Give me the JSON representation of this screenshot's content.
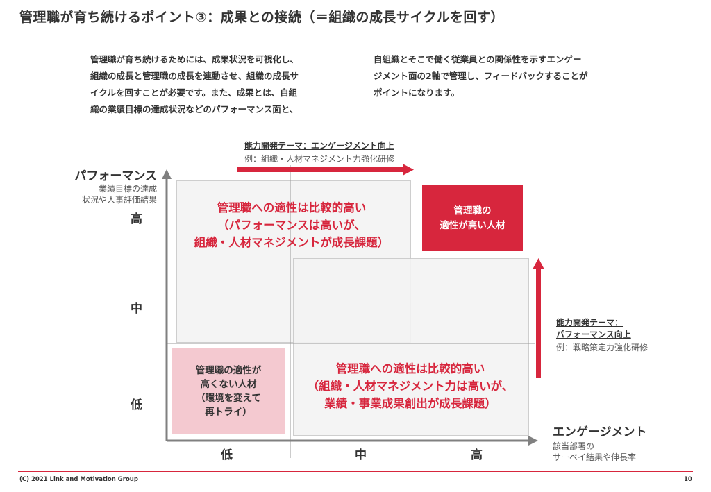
{
  "title": "管理職が育ち続けるポイント③：成果との接続（＝組織の成長サイクルを回す）",
  "intro": {
    "left_lines": [
      "管理職が育ち続けるためには、成果状況を可視化し、",
      "組織の成長と管理職の成長を連動させ、組織の成長サ",
      "イクルを回すことが必要です。また、成果とは、自組",
      "織の業績目標の達成状況などのパフォーマンス面と、"
    ],
    "right_lines": [
      "自組織とそこで働く従業員との関係性を示すエンゲー",
      "ジメント面の2軸で管理し、フィードバックすることが",
      "ポイントになります。"
    ]
  },
  "top_theme": {
    "title": "能力開発テーマ：エンゲージメント向上",
    "example": "例：組織・人材マネジメント力強化研修"
  },
  "right_theme": {
    "title_lines": [
      "能力開発テーマ：",
      "パフォーマンス向上"
    ],
    "example": "例：戦略策定力強化研修"
  },
  "y_axis": {
    "title": "パフォーマンス",
    "sub_lines": [
      "業績目標の達成",
      "状況や人事評価結果"
    ],
    "ticks": [
      "高",
      "中",
      "低"
    ]
  },
  "x_axis": {
    "title": "エンゲージメント",
    "sub_lines": [
      "該当部署の",
      "サーベイ結果や伸長率"
    ],
    "ticks": [
      "低",
      "中",
      "高"
    ]
  },
  "quadrants": {
    "top_left_lines": [
      "管理職への適性は比較的高い",
      "（パフォーマンスは高いが、",
      "組織・人材マネジメントが成長課題）"
    ],
    "top_right_lines": [
      "管理職の",
      "適性が高い人材"
    ],
    "bottom_left_lines": [
      "管理職の適性が",
      "高くない人材",
      "（環境を変えて",
      "再トライ）"
    ],
    "bottom_right_lines": [
      "管理職への適性は比較的高い",
      "（組織・人材マネジメント力は高いが、",
      "業績・事業成果創出が成長課題）"
    ]
  },
  "colors": {
    "accent": "#d7263d",
    "pink": "#f4c9d0",
    "grey_box": "#f3f3f3",
    "axis": "#808080"
  },
  "footer": {
    "copyright": "(C) 2021 Link and Motivation Group",
    "page": "10"
  }
}
